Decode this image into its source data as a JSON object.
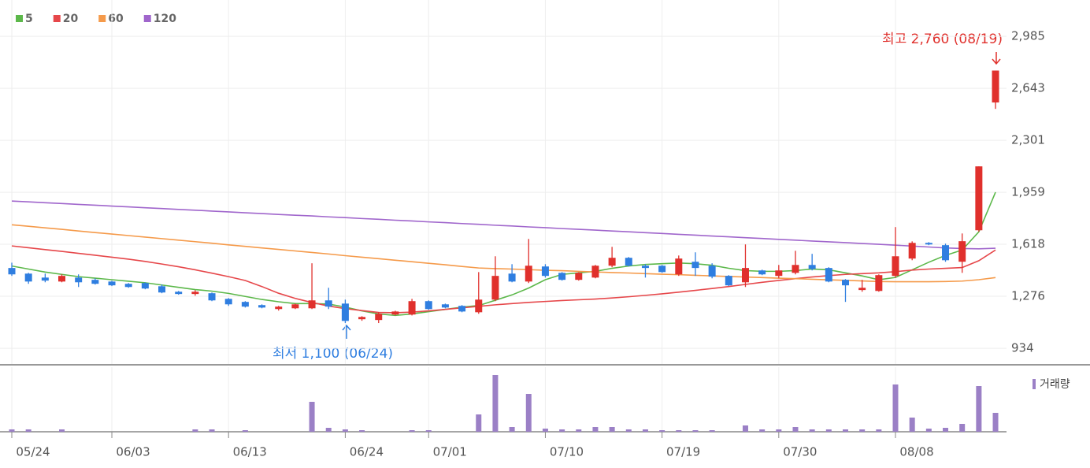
{
  "chart_data": {
    "type": "candlestick",
    "categories": [
      "05/24",
      null,
      null,
      null,
      null,
      null,
      "06/03",
      null,
      null,
      null,
      null,
      null,
      null,
      "06/13",
      null,
      null,
      null,
      null,
      null,
      null,
      "06/24",
      null,
      null,
      null,
      null,
      "07/01",
      null,
      null,
      null,
      null,
      null,
      null,
      "07/10",
      null,
      null,
      null,
      null,
      null,
      null,
      "07/19",
      null,
      null,
      null,
      null,
      null,
      null,
      "07/30",
      null,
      null,
      null,
      null,
      null,
      null,
      "08/08",
      null,
      null,
      null,
      null,
      null,
      null
    ],
    "ylim": [
      836,
      3146
    ],
    "yticks": [
      {
        "value": 2985,
        "label": "2,985"
      },
      {
        "value": 2643,
        "label": "2,643"
      },
      {
        "value": 2301,
        "label": "2,301"
      },
      {
        "value": 1959,
        "label": "1,959"
      },
      {
        "value": 1618,
        "label": "1,618"
      },
      {
        "value": 1276,
        "label": "1,276"
      },
      934
    ],
    "grid": true,
    "up_color": "#e0302c",
    "down_color": "#2f7ee0",
    "open": [
      1462,
      1425,
      1399,
      1373,
      1399,
      1384,
      1373,
      1358,
      1363,
      1342,
      1306,
      1291,
      1296,
      1259,
      1239,
      1218,
      1192,
      1197,
      1197,
      1249,
      1228,
      1125,
      1120,
      1156,
      1156,
      1244,
      1223,
      1213,
      1171,
      1254,
      1425,
      1373,
      1472,
      1430,
      1384,
      1399,
      1477,
      1529,
      1477,
      1477,
      1420,
      1503,
      1477,
      1410,
      1368,
      1446,
      1410,
      1430,
      1482,
      1462,
      1384,
      1317,
      1311,
      1410,
      1524,
      1627,
      1612,
      1503,
      1710,
      2550
    ],
    "high": [
      1497,
      1430,
      1425,
      1420,
      1420,
      1394,
      1378,
      1363,
      1368,
      1353,
      1311,
      1316,
      1301,
      1264,
      1244,
      1223,
      1213,
      1228,
      1493,
      1332,
      1254,
      1145,
      1171,
      1181,
      1259,
      1249,
      1228,
      1218,
      1435,
      1539,
      1487,
      1653,
      1487,
      1435,
      1435,
      1482,
      1601,
      1534,
      1487,
      1482,
      1544,
      1565,
      1493,
      1415,
      1617,
      1451,
      1482,
      1575,
      1555,
      1467,
      1389,
      1384,
      1420,
      1731,
      1637,
      1632,
      1622,
      1689,
      2130,
      2760
    ],
    "low": [
      1410,
      1358,
      1368,
      1368,
      1337,
      1353,
      1343,
      1332,
      1322,
      1296,
      1286,
      1280,
      1244,
      1213,
      1202,
      1197,
      1182,
      1192,
      1192,
      1192,
      1100,
      1115,
      1100,
      1150,
      1150,
      1187,
      1197,
      1171,
      1161,
      1244,
      1368,
      1363,
      1399,
      1379,
      1379,
      1394,
      1467,
      1472,
      1399,
      1430,
      1410,
      1410,
      1394,
      1343,
      1337,
      1415,
      1394,
      1420,
      1446,
      1368,
      1239,
      1306,
      1306,
      1399,
      1513,
      1612,
      1503,
      1430,
      1700,
      2508
    ],
    "close": [
      1420,
      1373,
      1379,
      1410,
      1368,
      1358,
      1348,
      1337,
      1327,
      1301,
      1291,
      1306,
      1249,
      1223,
      1208,
      1202,
      1208,
      1223,
      1249,
      1208,
      1114,
      1140,
      1161,
      1176,
      1244,
      1192,
      1202,
      1176,
      1254,
      1410,
      1373,
      1477,
      1410,
      1384,
      1430,
      1477,
      1529,
      1477,
      1462,
      1435,
      1524,
      1462,
      1405,
      1348,
      1462,
      1420,
      1446,
      1482,
      1456,
      1373,
      1348,
      1332,
      1415,
      1539,
      1627,
      1617,
      1513,
      1638,
      2130,
      2760
    ],
    "series": [
      {
        "name": "5",
        "color": "#5cb84a",
        "values": [
          1475,
          1455,
          1435,
          1420,
          1405,
          1395,
          1385,
          1375,
          1365,
          1350,
          1335,
          1320,
          1310,
          1295,
          1275,
          1255,
          1240,
          1228,
          1228,
          1225,
          1205,
          1180,
          1160,
          1150,
          1160,
          1175,
          1190,
          1205,
          1215,
          1250,
          1285,
          1330,
          1385,
          1420,
          1430,
          1440,
          1460,
          1475,
          1485,
          1490,
          1495,
          1490,
          1480,
          1460,
          1445,
          1440,
          1440,
          1445,
          1455,
          1450,
          1430,
          1410,
          1385,
          1400,
          1450,
          1500,
          1545,
          1580,
          1700,
          1960
        ]
      },
      {
        "name": "20",
        "color": "#e6474a",
        "values": [
          1607,
          1595,
          1583,
          1571,
          1558,
          1546,
          1533,
          1520,
          1505,
          1488,
          1470,
          1450,
          1428,
          1405,
          1380,
          1340,
          1296,
          1262,
          1235,
          1212,
          1195,
          1182,
          1170,
          1168,
          1172,
          1180,
          1190,
          1200,
          1210,
          1220,
          1228,
          1236,
          1242,
          1248,
          1253,
          1258,
          1265,
          1273,
          1282,
          1292,
          1303,
          1315,
          1327,
          1340,
          1354,
          1368,
          1380,
          1392,
          1403,
          1412,
          1420,
          1425,
          1430,
          1438,
          1448,
          1455,
          1460,
          1465,
          1510,
          1580
        ]
      },
      {
        "name": "60",
        "color": "#f59a4a",
        "values": [
          1746,
          1736,
          1726,
          1716,
          1705,
          1695,
          1685,
          1675,
          1665,
          1655,
          1645,
          1635,
          1625,
          1614,
          1604,
          1594,
          1584,
          1574,
          1564,
          1554,
          1543,
          1533,
          1523,
          1513,
          1503,
          1493,
          1483,
          1472,
          1462,
          1458,
          1455,
          1451,
          1447,
          1444,
          1440,
          1436,
          1432,
          1429,
          1425,
          1421,
          1418,
          1414,
          1410,
          1406,
          1403,
          1399,
          1395,
          1392,
          1388,
          1384,
          1381,
          1377,
          1373,
          1372,
          1372,
          1372,
          1373,
          1376,
          1385,
          1399
        ]
      },
      {
        "name": "120",
        "color": "#a066cc",
        "values": [
          1902,
          1897,
          1891,
          1886,
          1880,
          1875,
          1869,
          1864,
          1858,
          1853,
          1847,
          1842,
          1836,
          1831,
          1825,
          1820,
          1814,
          1809,
          1804,
          1798,
          1793,
          1787,
          1782,
          1776,
          1771,
          1765,
          1760,
          1754,
          1749,
          1743,
          1738,
          1732,
          1727,
          1721,
          1716,
          1711,
          1705,
          1700,
          1694,
          1689,
          1683,
          1678,
          1672,
          1667,
          1661,
          1656,
          1650,
          1645,
          1639,
          1634,
          1629,
          1623,
          1618,
          1612,
          1606,
          1600,
          1594,
          1590,
          1588,
          1592
        ]
      }
    ],
    "volume": {
      "label": "거래량",
      "color": "#9b80c6",
      "values": [
        3,
        3,
        0,
        3,
        0,
        0,
        0,
        0,
        0,
        0,
        0,
        3,
        3,
        0,
        2,
        0,
        0,
        0,
        38,
        5,
        3,
        2,
        0,
        0,
        2,
        2,
        0,
        0,
        22,
        72,
        6,
        48,
        4,
        3,
        3,
        6,
        6,
        3,
        3,
        2,
        2,
        2,
        2,
        0,
        8,
        3,
        3,
        6,
        3,
        3,
        3,
        3,
        3,
        60,
        18,
        4,
        5,
        10,
        58,
        24
      ]
    },
    "annotations": {
      "high": "최고 2,760 (08/19)",
      "low": "최저 1,100 (06/24)"
    }
  }
}
